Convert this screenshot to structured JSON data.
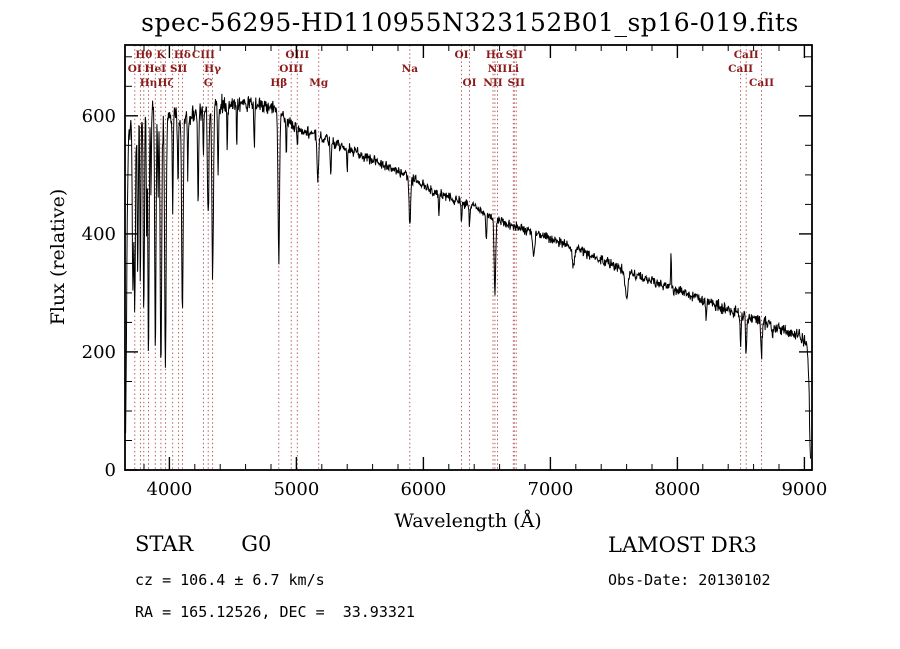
{
  "chart_data": {
    "type": "line",
    "title": "spec-56295-HD110955N323152B01_sp16-019.fits",
    "xlabel": "Wavelength (Å)",
    "ylabel": "Flux (relative)",
    "xlim": [
      3650,
      9060
    ],
    "ylim": [
      0,
      720
    ],
    "x_ticks": [
      4000,
      5000,
      6000,
      7000,
      8000,
      9000
    ],
    "y_ticks": [
      0,
      200,
      400,
      600
    ],
    "x_minor_step": 200,
    "y_minor_step": 50,
    "grid": false,
    "line_color": "#000000",
    "marker_color": "#b05050",
    "label_color": "#8b1a1a",
    "continuum_anchors": [
      [
        3655,
        60
      ],
      [
        3662,
        250
      ],
      [
        3670,
        480
      ],
      [
        3680,
        560
      ],
      [
        3695,
        590
      ],
      [
        3720,
        600
      ],
      [
        3760,
        605
      ],
      [
        3800,
        605
      ],
      [
        3860,
        610
      ],
      [
        3920,
        605
      ],
      [
        3980,
        600
      ],
      [
        4040,
        605
      ],
      [
        4100,
        600
      ],
      [
        4160,
        598
      ],
      [
        4220,
        605
      ],
      [
        4280,
        612
      ],
      [
        4360,
        618
      ],
      [
        4440,
        620
      ],
      [
        4520,
        618
      ],
      [
        4600,
        622
      ],
      [
        4680,
        620
      ],
      [
        4760,
        618
      ],
      [
        4840,
        612
      ],
      [
        4920,
        595
      ],
      [
        5000,
        580
      ],
      [
        5080,
        572
      ],
      [
        5160,
        568
      ],
      [
        5240,
        562
      ],
      [
        5320,
        552
      ],
      [
        5400,
        545
      ],
      [
        5480,
        538
      ],
      [
        5560,
        530
      ],
      [
        5640,
        522
      ],
      [
        5720,
        514
      ],
      [
        5800,
        506
      ],
      [
        5880,
        498
      ],
      [
        5960,
        488
      ],
      [
        6040,
        478
      ],
      [
        6120,
        470
      ],
      [
        6200,
        462
      ],
      [
        6280,
        455
      ],
      [
        6360,
        448
      ],
      [
        6440,
        440
      ],
      [
        6520,
        430
      ],
      [
        6600,
        422
      ],
      [
        6680,
        414
      ],
      [
        6760,
        410
      ],
      [
        6840,
        404
      ],
      [
        6920,
        398
      ],
      [
        7000,
        392
      ],
      [
        7100,
        383
      ],
      [
        7200,
        374
      ],
      [
        7300,
        365
      ],
      [
        7400,
        356
      ],
      [
        7500,
        347
      ],
      [
        7600,
        337
      ],
      [
        7700,
        329
      ],
      [
        7800,
        320
      ],
      [
        7900,
        312
      ],
      [
        8000,
        304
      ],
      [
        8100,
        296
      ],
      [
        8200,
        288
      ],
      [
        8300,
        280
      ],
      [
        8400,
        272
      ],
      [
        8500,
        264
      ],
      [
        8600,
        256
      ],
      [
        8700,
        248
      ],
      [
        8800,
        240
      ],
      [
        8900,
        233
      ],
      [
        8960,
        228
      ],
      [
        9000,
        222
      ],
      [
        9020,
        213
      ],
      [
        9035,
        160
      ],
      [
        9045,
        40
      ],
      [
        9050,
        5
      ]
    ],
    "absorption_features": [
      [
        3712,
        300,
        5
      ],
      [
        3727,
        320,
        5
      ],
      [
        3750,
        280,
        4
      ],
      [
        3771,
        300,
        4
      ],
      [
        3798,
        340,
        5
      ],
      [
        3820,
        200,
        3
      ],
      [
        3835,
        420,
        5
      ],
      [
        3855,
        150,
        3
      ],
      [
        3889,
        400,
        5
      ],
      [
        3910,
        150,
        3
      ],
      [
        3933,
        440,
        6
      ],
      [
        3968,
        430,
        6
      ],
      [
        4026,
        160,
        4
      ],
      [
        4068,
        120,
        4
      ],
      [
        4102,
        330,
        6
      ],
      [
        4144,
        100,
        3
      ],
      [
        4226,
        160,
        4
      ],
      [
        4267,
        80,
        3
      ],
      [
        4305,
        180,
        6
      ],
      [
        4340,
        290,
        6
      ],
      [
        4383,
        120,
        4
      ],
      [
        4455,
        80,
        3
      ],
      [
        4530,
        70,
        3
      ],
      [
        4668,
        70,
        3
      ],
      [
        4861,
        250,
        6
      ],
      [
        4920,
        70,
        3
      ],
      [
        5007,
        40,
        3
      ],
      [
        5169,
        80,
        6
      ],
      [
        5270,
        60,
        4
      ],
      [
        5400,
        40,
        3
      ],
      [
        5893,
        85,
        6
      ],
      [
        6122,
        40,
        3
      ],
      [
        6300,
        35,
        3
      ],
      [
        6363,
        30,
        3
      ],
      [
        6495,
        40,
        4
      ],
      [
        6563,
        130,
        6
      ],
      [
        6867,
        40,
        8
      ],
      [
        7180,
        30,
        8
      ],
      [
        7600,
        45,
        12
      ],
      [
        8227,
        30,
        4
      ],
      [
        8498,
        55,
        5
      ],
      [
        8542,
        65,
        5
      ],
      [
        8662,
        60,
        5
      ],
      [
        8750,
        25,
        4
      ]
    ],
    "emission_features": [
      [
        7950,
        60,
        3
      ]
    ],
    "noise_amplitude": [
      [
        3655,
        16
      ],
      [
        4200,
        12
      ],
      [
        4800,
        9
      ],
      [
        5500,
        7
      ],
      [
        6500,
        6
      ],
      [
        7500,
        6
      ],
      [
        8300,
        7
      ],
      [
        9040,
        9
      ]
    ],
    "spectral_lines": [
      {
        "wavelength": 3798,
        "label": "Hθ",
        "row": 1
      },
      {
        "wavelength": 3933,
        "label": "K",
        "row": 1
      },
      {
        "wavelength": 4102,
        "label": "Hδ",
        "row": 1
      },
      {
        "wavelength": 4267,
        "label": "CIII",
        "row": 1
      },
      {
        "wavelength": 5007,
        "label": "OIII",
        "row": 1
      },
      {
        "wavelength": 6300,
        "label": "OI",
        "row": 1
      },
      {
        "wavelength": 6563,
        "label": "Hα",
        "row": 1
      },
      {
        "wavelength": 6716,
        "label": "SII",
        "row": 1
      },
      {
        "wavelength": 8542,
        "label": "CaII",
        "row": 1
      },
      {
        "wavelength": 3727,
        "label": "OI",
        "row": 2
      },
      {
        "wavelength": 3889,
        "label": "HeI",
        "row": 2
      },
      {
        "wavelength": 4072,
        "label": "SII",
        "row": 2
      },
      {
        "wavelength": 4340,
        "label": "Hγ",
        "row": 2
      },
      {
        "wavelength": 4959,
        "label": "OIII",
        "row": 2
      },
      {
        "wavelength": 5893,
        "label": "Na",
        "row": 2
      },
      {
        "wavelength": 6583,
        "label": "NII",
        "row": 2
      },
      {
        "wavelength": 6708,
        "label": "Li",
        "row": 2
      },
      {
        "wavelength": 8498,
        "label": "CaII",
        "row": 2
      },
      {
        "wavelength": 3835,
        "label": "Hη",
        "row": 3
      },
      {
        "wavelength": 3970,
        "label": "Hζ",
        "row": 3
      },
      {
        "wavelength": 4305,
        "label": "G",
        "row": 3
      },
      {
        "wavelength": 4861,
        "label": "Hβ",
        "row": 3
      },
      {
        "wavelength": 5175,
        "label": "Mg",
        "row": 3
      },
      {
        "wavelength": 6363,
        "label": "OI",
        "row": 3
      },
      {
        "wavelength": 6548,
        "label": "NII",
        "row": 3
      },
      {
        "wavelength": 6731,
        "label": "SII",
        "row": 3
      },
      {
        "wavelength": 8662,
        "label": "CaII",
        "row": 3
      },
      {
        "wavelength": 3771,
        "label": "",
        "row": 0
      },
      {
        "wavelength": 4026,
        "label": "",
        "row": 0
      }
    ]
  },
  "annotations": {
    "class_name": "STAR",
    "subclass": "G0",
    "cz": "cz = 106.4 ± 6.7 km/s",
    "radec": "RA = 165.12526, DEC =  33.93321",
    "survey": "LAMOST DR3",
    "obs_date": "Obs-Date: 20130102"
  }
}
